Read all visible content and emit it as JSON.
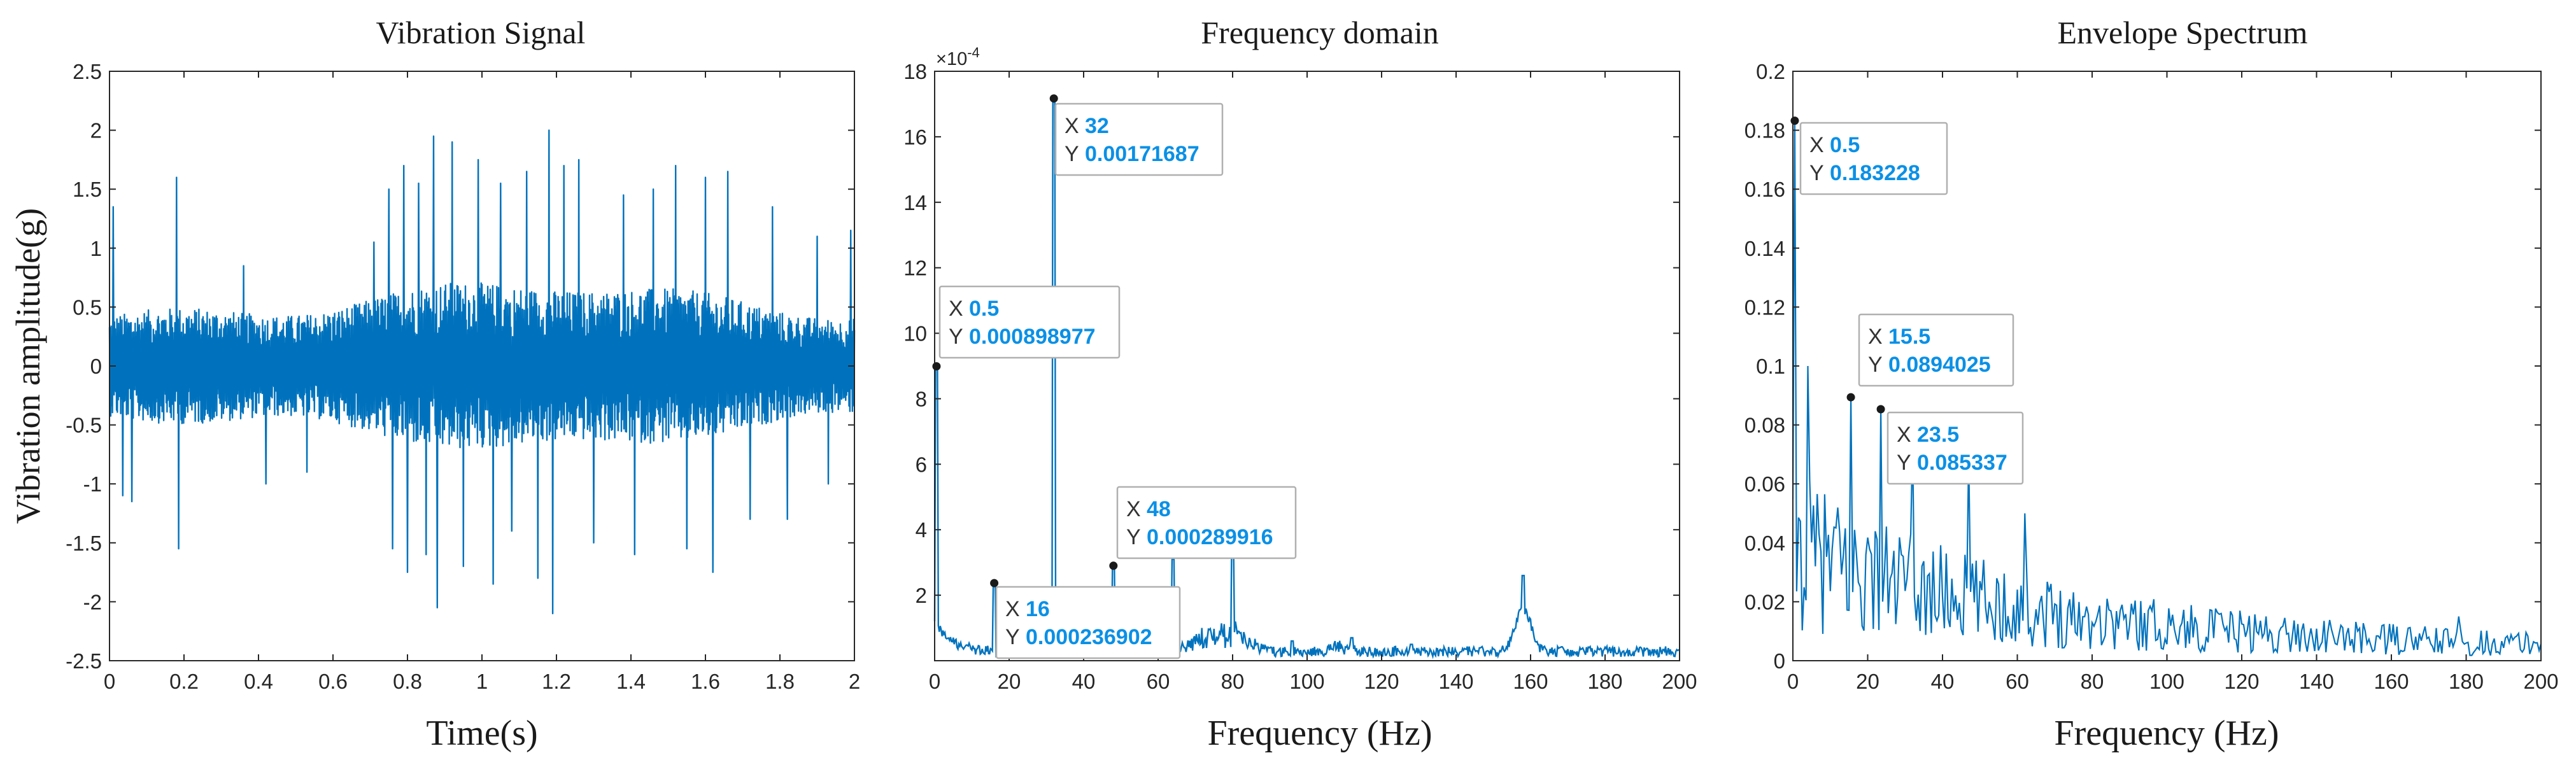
{
  "colors": {
    "series": "#0072bd",
    "axis": "#262626",
    "tip_value": "#0a90e6",
    "tip_border": "#b0b0b0",
    "marker": "#1a1a1a"
  },
  "chart_data": [
    {
      "type": "line",
      "title": "Vibration Signal",
      "xlabel": "Time(s)",
      "ylabel": "Vibration amplitude(g)",
      "xlim": [
        0,
        2
      ],
      "ylim": [
        -2.5,
        2.5
      ],
      "xticks": [
        "0",
        "0.2",
        "0.4",
        "0.6",
        "0.8",
        "1",
        "1.2",
        "1.4",
        "1.6",
        "1.8",
        "2"
      ],
      "yticks": [
        "-2.5",
        "-2",
        "-1.5",
        "-1",
        "-0.5",
        "0",
        "0.5",
        "1",
        "1.5",
        "2",
        "2.5"
      ],
      "signal": {
        "samples": 1800,
        "spikes": [
          {
            "t": 0.01,
            "a": 1.35
          },
          {
            "t": 0.035,
            "a": -1.1
          },
          {
            "t": 0.06,
            "a": -1.15
          },
          {
            "t": 0.18,
            "a": 1.6
          },
          {
            "t": 0.185,
            "a": -1.55
          },
          {
            "t": 0.36,
            "a": 0.85
          },
          {
            "t": 0.42,
            "a": -1.0
          },
          {
            "t": 0.53,
            "a": -0.9
          },
          {
            "t": 0.71,
            "a": 1.05
          },
          {
            "t": 0.75,
            "a": 1.5
          },
          {
            "t": 0.76,
            "a": -1.55
          },
          {
            "t": 0.79,
            "a": 1.7
          },
          {
            "t": 0.8,
            "a": -1.75
          },
          {
            "t": 0.83,
            "a": 1.55
          },
          {
            "t": 0.85,
            "a": -1.6
          },
          {
            "t": 0.87,
            "a": 1.95
          },
          {
            "t": 0.88,
            "a": -2.05
          },
          {
            "t": 0.92,
            "a": 1.9
          },
          {
            "t": 0.95,
            "a": -1.7
          },
          {
            "t": 0.99,
            "a": 1.75
          },
          {
            "t": 1.03,
            "a": -1.85
          },
          {
            "t": 1.05,
            "a": 1.55
          },
          {
            "t": 1.08,
            "a": -1.4
          },
          {
            "t": 1.12,
            "a": 1.65
          },
          {
            "t": 1.15,
            "a": -1.8
          },
          {
            "t": 1.18,
            "a": 2.0
          },
          {
            "t": 1.19,
            "a": -2.1
          },
          {
            "t": 1.22,
            "a": 1.7
          },
          {
            "t": 1.26,
            "a": 1.75
          },
          {
            "t": 1.3,
            "a": -1.5
          },
          {
            "t": 1.38,
            "a": 1.45
          },
          {
            "t": 1.41,
            "a": -1.6
          },
          {
            "t": 1.46,
            "a": 1.5
          },
          {
            "t": 1.52,
            "a": 1.7
          },
          {
            "t": 1.55,
            "a": -1.55
          },
          {
            "t": 1.6,
            "a": 1.6
          },
          {
            "t": 1.62,
            "a": -1.75
          },
          {
            "t": 1.66,
            "a": 1.65
          },
          {
            "t": 1.72,
            "a": -1.3
          },
          {
            "t": 1.78,
            "a": 1.35
          },
          {
            "t": 1.82,
            "a": -1.3
          },
          {
            "t": 1.9,
            "a": 1.1
          },
          {
            "t": 1.93,
            "a": -1.0
          },
          {
            "t": 1.99,
            "a": 1.15
          }
        ]
      }
    },
    {
      "type": "line",
      "title": "Frequency domain",
      "xlabel": "Frequency (Hz)",
      "ylabel": "",
      "scale_label": "×10",
      "scale_exponent": "-4",
      "xlim": [
        0,
        200
      ],
      "ylim": [
        0,
        18
      ],
      "xticks": [
        "0",
        "20",
        "40",
        "60",
        "80",
        "100",
        "120",
        "140",
        "160",
        "180",
        "200"
      ],
      "yticks": [
        "2",
        "4",
        "6",
        "8",
        "10",
        "12",
        "14",
        "16",
        "18"
      ],
      "peaks": [
        {
          "x": 0.5,
          "y": 9.0
        },
        {
          "x": 16,
          "y": 2.37
        },
        {
          "x": 32,
          "y": 17.17
        },
        {
          "x": 48,
          "y": 2.9
        },
        {
          "x": 64,
          "y": 3.1
        },
        {
          "x": 80,
          "y": 3.5
        },
        {
          "x": 96,
          "y": 0.6
        },
        {
          "x": 112,
          "y": 0.7
        },
        {
          "x": 128,
          "y": 0.5
        },
        {
          "x": 158,
          "y": 2.6
        }
      ],
      "datatips": [
        {
          "x_label": "X",
          "x": "0.5",
          "y_label": "Y",
          "y": "0.000898977"
        },
        {
          "x_label": "X",
          "x": "32",
          "y_label": "Y",
          "y": "0.00171687"
        },
        {
          "x_label": "X",
          "x": "16",
          "y_label": "Y",
          "y": "0.000236902"
        },
        {
          "x_label": "X",
          "x": "48",
          "y_label": "Y",
          "y": "0.000289916"
        }
      ]
    },
    {
      "type": "line",
      "title": "Envelope Spectrum",
      "xlabel": "Frequency (Hz)",
      "ylabel": "",
      "xlim": [
        0,
        200
      ],
      "ylim": [
        0,
        0.2
      ],
      "xticks": [
        "0",
        "20",
        "40",
        "60",
        "80",
        "100",
        "120",
        "140",
        "160",
        "180",
        "200"
      ],
      "yticks": [
        "0",
        "0.02",
        "0.04",
        "0.06",
        "0.08",
        "0.1",
        "0.12",
        "0.14",
        "0.16",
        "0.18",
        "0.2"
      ],
      "peaks": [
        {
          "x": 0.5,
          "y": 0.183228
        },
        {
          "x": 4,
          "y": 0.1
        },
        {
          "x": 15.5,
          "y": 0.0894025
        },
        {
          "x": 23.5,
          "y": 0.085337
        },
        {
          "x": 32,
          "y": 0.075
        },
        {
          "x": 47,
          "y": 0.07
        },
        {
          "x": 62,
          "y": 0.05
        },
        {
          "x": 178,
          "y": 0.015
        }
      ],
      "datatips": [
        {
          "x_label": "X",
          "x": "0.5",
          "y_label": "Y",
          "y": "0.183228"
        },
        {
          "x_label": "X",
          "x": "15.5",
          "y_label": "Y",
          "y": "0.0894025"
        },
        {
          "x_label": "X",
          "x": "23.5",
          "y_label": "Y",
          "y": "0.085337"
        }
      ]
    }
  ]
}
